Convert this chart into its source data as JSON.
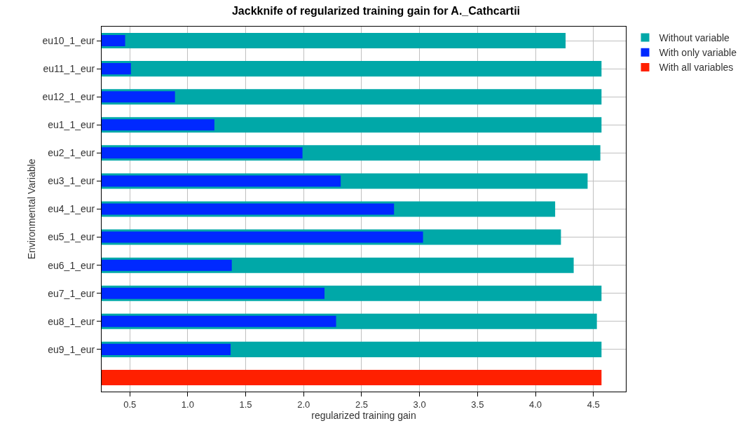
{
  "chart_data": {
    "type": "bar",
    "orientation": "horizontal",
    "title": "Jackknife of regularized training gain for A._Cathcartii",
    "xlabel": "regularized training gain",
    "ylabel": "Environmental Variable",
    "categories": [
      "eu10_1_eur",
      "eu11_1_eur",
      "eu12_1_eur",
      "eu1_1_eur",
      "eu2_1_eur",
      "eu3_1_eur",
      "eu4_1_eur",
      "eu5_1_eur",
      "eu6_1_eur",
      "eu7_1_eur",
      "eu8_1_eur",
      "eu9_1_eur",
      null
    ],
    "series": [
      {
        "name": "Without variable",
        "color": "#00a8a8",
        "values": [
          4.26,
          4.57,
          4.57,
          4.57,
          4.56,
          4.45,
          4.17,
          4.22,
          4.33,
          4.57,
          4.53,
          4.57,
          null
        ]
      },
      {
        "name": "With only variable",
        "color": "#0029ff",
        "values": [
          0.46,
          0.51,
          0.89,
          1.23,
          1.99,
          2.32,
          2.78,
          3.03,
          1.38,
          2.18,
          2.28,
          1.37,
          null
        ]
      },
      {
        "name": "With all variables",
        "color": "#ff2000",
        "values": [
          null,
          null,
          null,
          null,
          null,
          null,
          null,
          null,
          null,
          null,
          null,
          null,
          4.57
        ]
      }
    ],
    "xlim": [
      0.257,
      4.78
    ],
    "xticks": [
      {
        "value": 0.5,
        "label": "0.5"
      },
      {
        "value": 1,
        "label": "1.0"
      },
      {
        "value": 1.5,
        "label": "1.5"
      },
      {
        "value": 2,
        "label": "2.0"
      },
      {
        "value": 2.5,
        "label": "2.5"
      },
      {
        "value": 3,
        "label": "3.0"
      },
      {
        "value": 3.5,
        "label": "3.5"
      },
      {
        "value": 4,
        "label": "4.0"
      },
      {
        "value": 4.5,
        "label": "4.5"
      }
    ],
    "grid": true,
    "legend": "top right"
  }
}
